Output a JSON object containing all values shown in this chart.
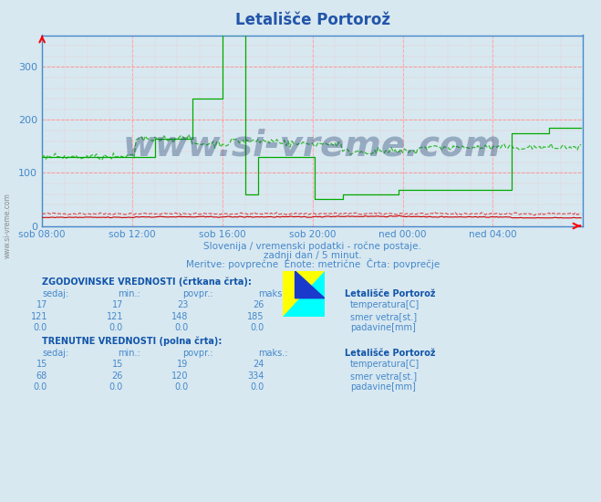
{
  "title": "Letališče Portorož",
  "bg_color": "#d8e8f0",
  "plot_bg": "#d8e8f0",
  "grid_color_h": "#ff9999",
  "grid_color_v": "#ffaaaa",
  "xlabel_color": "#4488cc",
  "ylabel_color": "#4488cc",
  "title_color": "#2255aa",
  "watermark": "www.si-vreme.com",
  "xlim": [
    0,
    288
  ],
  "ylim": [
    0,
    360
  ],
  "yticks": [
    0,
    100,
    200,
    300
  ],
  "xtick_positions": [
    0,
    48,
    96,
    144,
    192,
    240,
    288
  ],
  "xtick_labels": [
    "sob 08:00",
    "sob 12:00",
    "sob 16:00",
    "sob 20:00",
    "ned 00:00",
    "ned 04:00",
    ""
  ],
  "subtitle1": "Slovenija / vremenski podatki - ročne postaje.",
  "subtitle2": "zadnji dan / 5 minut.",
  "subtitle3": "Meritve: povprečne  Enote: metrične  Črta: povprečje",
  "legend_hist_label": "ZGODOVINSKE VREDNOSTI (črtkana črta):",
  "legend_curr_label": "TRENUTNE VREDNOSTI (polna črta):",
  "hist_temp_sedaj": 17,
  "hist_temp_min": 17,
  "hist_temp_povpr": 23,
  "hist_temp_maks": 26,
  "hist_wind_sedaj": 121,
  "hist_wind_min": 121,
  "hist_wind_povpr": 148,
  "hist_wind_maks": 185,
  "hist_rain_sedaj": 0.0,
  "hist_rain_min": 0.0,
  "hist_rain_povpr": 0.0,
  "hist_rain_maks": 0.0,
  "curr_temp_sedaj": 15,
  "curr_temp_min": 15,
  "curr_temp_povpr": 19,
  "curr_temp_maks": 24,
  "curr_wind_sedaj": 68,
  "curr_wind_min": 26,
  "curr_wind_povpr": 120,
  "curr_wind_maks": 334,
  "curr_rain_sedaj": 0.0,
  "curr_rain_min": 0.0,
  "curr_rain_povpr": 0.0,
  "curr_rain_maks": 0.0,
  "color_temp": "#cc0000",
  "color_wind": "#00aa00",
  "color_rain": "#0000cc",
  "color_temp_hist": "#dd4444",
  "color_wind_hist": "#33bb33",
  "color_rain_hist": "#4444ff"
}
